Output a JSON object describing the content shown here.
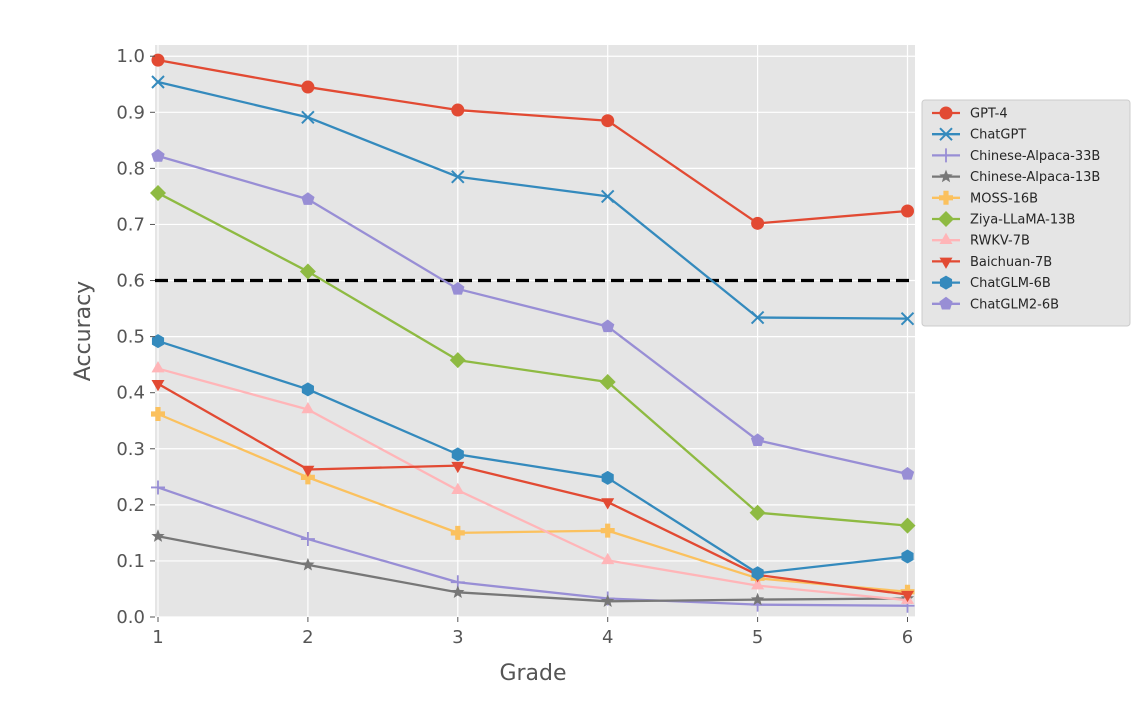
{
  "chart_data": {
    "type": "line",
    "xlabel": "Grade",
    "ylabel": "Accuracy",
    "x": [
      1,
      2,
      3,
      4,
      5,
      6
    ],
    "x_ticks": [
      "1",
      "2",
      "3",
      "4",
      "5",
      "6"
    ],
    "xlim": [
      0.98,
      6.05
    ],
    "ylim": [
      0.0,
      1.02
    ],
    "y_ticks": [
      "0.0",
      "0.1",
      "0.2",
      "0.3",
      "0.4",
      "0.5",
      "0.6",
      "0.7",
      "0.8",
      "0.9",
      "1.0"
    ],
    "grid": true,
    "legend_position": "outside-right",
    "reference_line": {
      "y": 0.6,
      "style": "dashed",
      "color": "#000000"
    },
    "series": [
      {
        "name": "GPT-4",
        "color": "#E24A33",
        "marker": "circle",
        "values": [
          0.993,
          0.945,
          0.904,
          0.885,
          0.702,
          0.724
        ]
      },
      {
        "name": "ChatGPT",
        "color": "#348ABD",
        "marker": "x",
        "values": [
          0.954,
          0.891,
          0.785,
          0.75,
          0.534,
          0.532
        ]
      },
      {
        "name": "Chinese-Alpaca-33B",
        "color": "#988ED5",
        "marker": "plus",
        "values": [
          0.231,
          0.139,
          0.062,
          0.033,
          0.022,
          0.02
        ]
      },
      {
        "name": "Chinese-Alpaca-13B",
        "color": "#777777",
        "marker": "star",
        "values": [
          0.144,
          0.093,
          0.044,
          0.028,
          0.031,
          0.033
        ]
      },
      {
        "name": "MOSS-16B",
        "color": "#FBC15E",
        "marker": "pluscross",
        "values": [
          0.362,
          0.249,
          0.15,
          0.154,
          0.069,
          0.045
        ]
      },
      {
        "name": "Ziya-LLaMA-13B",
        "color": "#8EBA42",
        "marker": "diamond",
        "values": [
          0.756,
          0.616,
          0.458,
          0.419,
          0.186,
          0.163
        ]
      },
      {
        "name": "RWKV-7B",
        "color": "#FFB5B8",
        "marker": "triangle-up",
        "values": [
          0.443,
          0.37,
          0.226,
          0.101,
          0.056,
          0.03
        ]
      },
      {
        "name": "Baichuan-7B",
        "color": "#E24A33",
        "marker": "triangle-down",
        "values": [
          0.416,
          0.263,
          0.27,
          0.205,
          0.075,
          0.04
        ]
      },
      {
        "name": "ChatGLM-6B",
        "color": "#348ABD",
        "marker": "hexagon",
        "values": [
          0.492,
          0.406,
          0.29,
          0.248,
          0.078,
          0.108
        ]
      },
      {
        "name": "ChatGLM2-6B",
        "color": "#988ED5",
        "marker": "pentagon",
        "values": [
          0.822,
          0.745,
          0.585,
          0.518,
          0.315,
          0.255
        ]
      }
    ]
  }
}
